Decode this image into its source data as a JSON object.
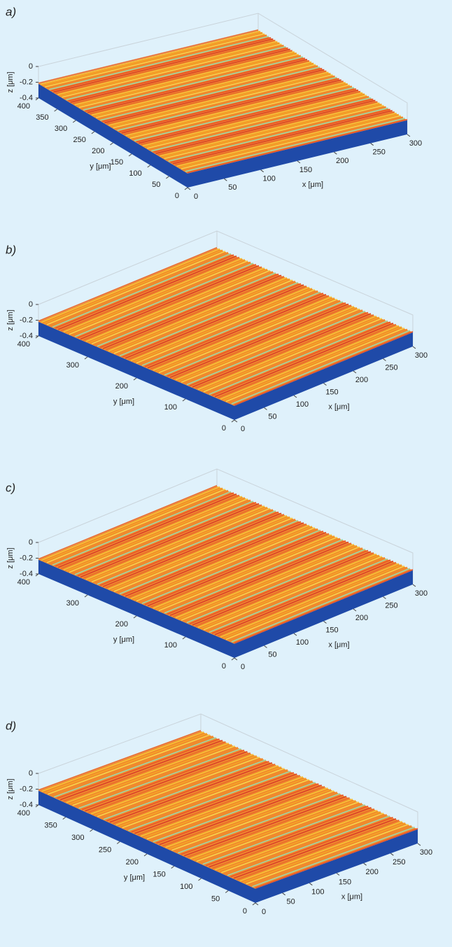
{
  "chart_data": [
    {
      "type": "surface",
      "title": "a)",
      "xlabel": "x [μm]",
      "ylabel": "y [μm]",
      "zlabel": "z [μm]",
      "xlim": [
        0,
        300
      ],
      "ylim": [
        0,
        400
      ],
      "zlim": [
        -0.4,
        0
      ],
      "xticks": [
        0,
        50,
        100,
        150,
        200,
        250,
        300
      ],
      "yticks": [
        0,
        50,
        100,
        150,
        200,
        250,
        300,
        350,
        400
      ],
      "zticks": [
        -0.4,
        -0.2,
        0
      ]
    },
    {
      "type": "surface",
      "title": "b)",
      "xlabel": "x [μm]",
      "ylabel": "y [μm]",
      "zlabel": "z [μm]",
      "xlim": [
        0,
        300
      ],
      "ylim": [
        0,
        400
      ],
      "zlim": [
        -0.4,
        0
      ],
      "xticks": [
        0,
        50,
        100,
        150,
        200,
        250,
        300
      ],
      "yticks": [
        0,
        100,
        200,
        300,
        400
      ],
      "zticks": [
        -0.4,
        -0.2,
        0
      ]
    },
    {
      "type": "surface",
      "title": "c)",
      "xlabel": "x [μm]",
      "ylabel": "y [μm]",
      "zlabel": "z [μm]",
      "xlim": [
        0,
        300
      ],
      "ylim": [
        0,
        400
      ],
      "zlim": [
        -0.4,
        0
      ],
      "xticks": [
        0,
        50,
        100,
        150,
        200,
        250,
        300
      ],
      "yticks": [
        0,
        100,
        200,
        300,
        400
      ],
      "zticks": [
        -0.4,
        -0.2,
        0
      ]
    },
    {
      "type": "surface",
      "title": "d)",
      "xlabel": "x [μm]",
      "ylabel": "y [μm]",
      "zlabel": "z [μm]",
      "xlim": [
        0,
        300
      ],
      "ylim": [
        0,
        400
      ],
      "zlim": [
        -0.4,
        0
      ],
      "xticks": [
        0,
        50,
        100,
        150,
        200,
        250,
        300
      ],
      "yticks": [
        0,
        50,
        100,
        150,
        200,
        250,
        300,
        350,
        400
      ],
      "zticks": [
        -0.4,
        -0.2,
        0
      ]
    }
  ]
}
